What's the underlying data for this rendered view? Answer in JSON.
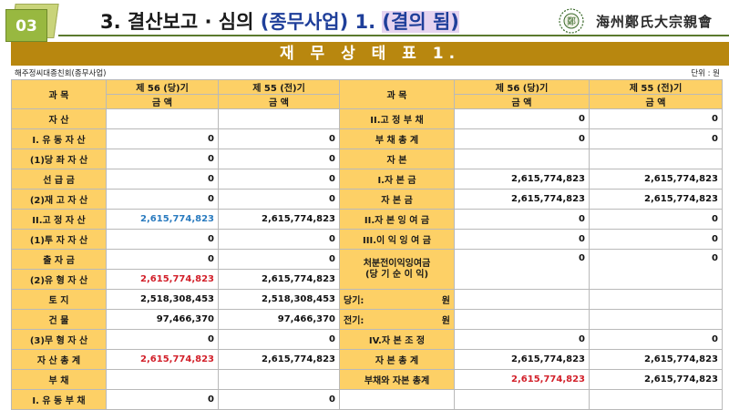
{
  "header": {
    "badge": "03",
    "title_prefix": "3. 결산보고 · 심의 ",
    "title_paren": "(종무사업) 1. ",
    "title_result": "(결의 됨)",
    "logo_text": "海州鄭氏大宗親會"
  },
  "banner": "재 무 상 태 표 1.",
  "org_name": "해주정씨대종친회(종무사업)",
  "unit": "단위 : 원",
  "columns": {
    "subject": "과    목",
    "subject_right": "과 목",
    "current": "제 56 (당)기",
    "prior": "제 55 (전)기",
    "amount": "금    액"
  },
  "colors": {
    "banner": "#b8870f",
    "label_bg": "#fdd066",
    "red_value": "#d2202a",
    "blue_value": "#2a7bbf",
    "badge": "#98b840"
  },
  "rows": [
    {
      "l_label": "자    산",
      "l_cur": "",
      "l_prior": "",
      "r_label": "II.고 정 부 채",
      "r_cur": "0",
      "r_prior": "0"
    },
    {
      "l_label": "I. 유 동 자 산",
      "l_cur": "0",
      "l_prior": "0",
      "r_label": "부 채 총 계",
      "r_cur": "0",
      "r_prior": "0"
    },
    {
      "l_label": "(1)당 좌 자 산",
      "l_cur": "0",
      "l_prior": "0",
      "r_label": "자    본",
      "r_cur": "",
      "r_prior": ""
    },
    {
      "l_label": "선 급 금",
      "l_cur": "0",
      "l_prior": "0",
      "r_label": "I.자  본  금",
      "r_cur": "2,615,774,823",
      "r_prior": "2,615,774,823"
    },
    {
      "l_label": "(2)재 고 자 산",
      "l_cur": "0",
      "l_prior": "0",
      "r_label": "자  본  금",
      "r_cur": "2,615,774,823",
      "r_prior": "2,615,774,823"
    },
    {
      "l_label": "II.고 정 자 산",
      "l_cur": "2,615,774,823",
      "l_prior": "2,615,774,823",
      "r_label": "II.자 본 잉 여 금",
      "r_cur": "0",
      "r_prior": "0"
    },
    {
      "l_label": "(1)투 자 자 산",
      "l_cur": "0",
      "l_prior": "0",
      "r_label": "III.이 익 잉 여 금",
      "r_cur": "0",
      "r_prior": "0"
    },
    {
      "l_label": "출 자 금",
      "l_cur": "0",
      "l_prior": "0"
    },
    {
      "l_label": "(2)유 형 자 산",
      "l_cur": "2,615,774,823",
      "l_prior": "2,615,774,823"
    },
    {
      "l_label": "토    지",
      "l_cur": "2,518,308,453",
      "l_prior": "2,518,308,453"
    },
    {
      "l_label": "건    물",
      "l_cur": "97,466,370",
      "l_prior": "97,466,370"
    },
    {
      "l_label": "(3)무 형 자 산",
      "l_cur": "0",
      "l_prior": "0",
      "r_label": "IV.자 본 조 정",
      "r_cur": "0",
      "r_prior": "0"
    },
    {
      "l_label": "자 산 총 계",
      "l_cur": "2,615,774,823",
      "l_prior": "2,615,774,823",
      "r_label": "자 본 총 계",
      "r_cur": "2,615,774,823",
      "r_prior": "2,615,774,823"
    },
    {
      "l_label": "부    채",
      "l_cur": "",
      "l_prior": "",
      "r_label": "부채와 자본 총계",
      "r_cur": "2,615,774,823",
      "r_prior": "2,615,774,823"
    },
    {
      "l_label": "I. 유 동 부 채",
      "l_cur": "0",
      "l_prior": "0"
    }
  ],
  "retained": {
    "label_line1": "처분전이익잉여금",
    "label_line2": "(당 기 순 이 익)",
    "cur": "0",
    "prior": "0",
    "this_year_left": "당기:",
    "last_year_left": "전기:",
    "won": "원"
  }
}
